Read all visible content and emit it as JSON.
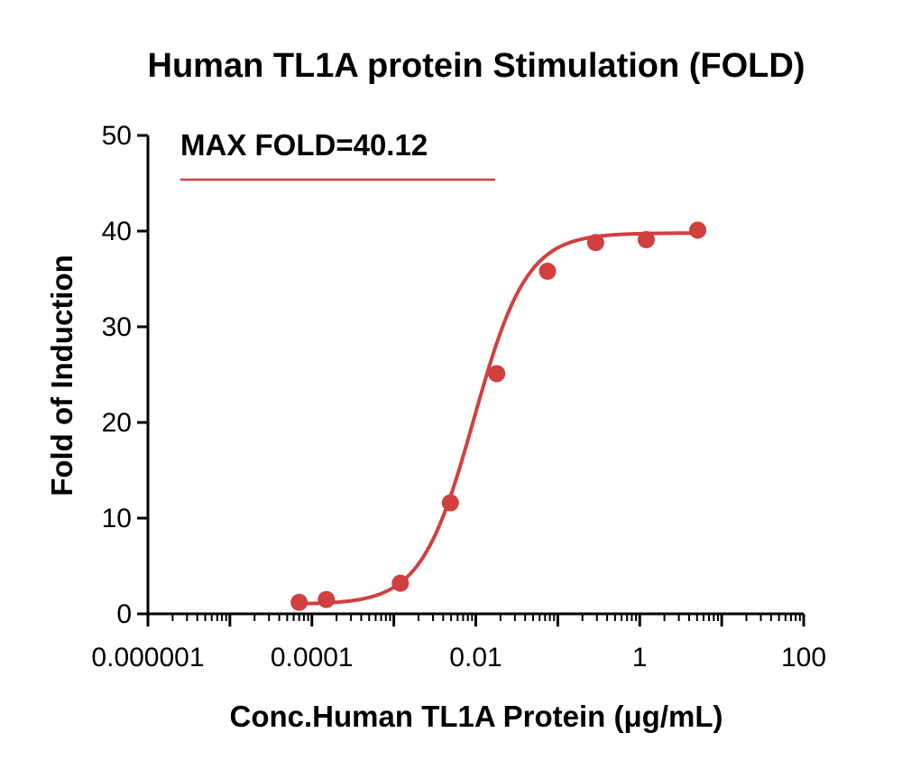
{
  "colors": {
    "series": "#d23f3f",
    "axis": "#000000"
  },
  "chart_data": {
    "type": "scatter",
    "title": "Human TL1A protein Stimulation (FOLD)",
    "xlabel": "Conc.Human TL1A Protein (μg/mL)",
    "ylabel": "Fold of Induction",
    "xscale": "log",
    "xlim": [
      1e-06,
      100
    ],
    "ylim": [
      0,
      50
    ],
    "xticks": [
      {
        "value": 1e-06,
        "label": "0.000001"
      },
      {
        "value": 0.0001,
        "label": "0.0001"
      },
      {
        "value": 0.01,
        "label": "0.01"
      },
      {
        "value": 1,
        "label": "1"
      },
      {
        "value": 100,
        "label": "100"
      }
    ],
    "yticks": [
      {
        "value": 0,
        "label": "0"
      },
      {
        "value": 10,
        "label": "10"
      },
      {
        "value": 20,
        "label": "20"
      },
      {
        "value": 30,
        "label": "30"
      },
      {
        "value": 40,
        "label": "40"
      },
      {
        "value": 50,
        "label": "50"
      }
    ],
    "annotation": "MAX FOLD=40.12",
    "series": [
      {
        "name": "Human TL1A protein",
        "x": [
          7e-05,
          0.00015,
          0.0012,
          0.0049,
          0.018,
          0.075,
          0.29,
          1.2,
          5.1
        ],
        "y": [
          1.2,
          1.5,
          3.2,
          11.6,
          25.1,
          35.8,
          38.8,
          39.1,
          40.1
        ],
        "fit": {
          "model": "4PL",
          "bottom": 1.0,
          "top": 39.8,
          "ec50": 0.0095,
          "hill": 1.35
        }
      }
    ]
  }
}
